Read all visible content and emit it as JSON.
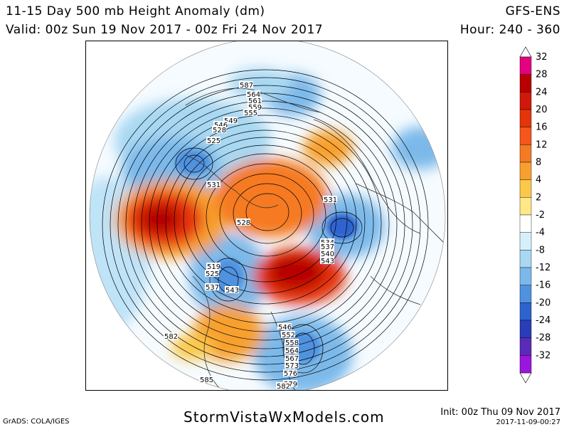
{
  "header": {
    "title": "11-15 Day 500 mb Height Anomaly (dm)",
    "valid": "Valid: 00z Sun 19 Nov 2017 - 00z Fri 24 Nov 2017",
    "model": "GFS-ENS",
    "hour": "Hour: 240 - 360"
  },
  "colorbar": {
    "labels": [
      "32",
      "28",
      "24",
      "20",
      "16",
      "12",
      "8",
      "4",
      "2",
      "-2",
      "-4",
      "-8",
      "-12",
      "-16",
      "-20",
      "-24",
      "-28",
      "-32"
    ],
    "colors": [
      "#e5007f",
      "#b80000",
      "#d2180a",
      "#e6340a",
      "#f4561c",
      "#f57a24",
      "#f8a02e",
      "#fbc84a",
      "#ffe888",
      "#ffffff",
      "#d6f0fb",
      "#a8d8f2",
      "#7bb9ea",
      "#4f92e0",
      "#2d63d0",
      "#2a3db8",
      "#5a2ab8",
      "#9a16dd"
    ]
  },
  "contour_labels": [
    "587",
    "564",
    "561",
    "559",
    "555",
    "549",
    "546",
    "528",
    "525",
    "531",
    "528",
    "531",
    "534",
    "537",
    "540",
    "543",
    "519",
    "525",
    "537",
    "543",
    "546",
    "552",
    "558",
    "564",
    "567",
    "573",
    "576",
    "579",
    "582",
    "582",
    "585"
  ],
  "footer": {
    "grads": "GrADS: COLA/IGES",
    "site": "StormVistaWxModels.com",
    "init": "Init: 00z Thu 09 Nov 2017",
    "stamp": "2017-11-09-00:27"
  }
}
